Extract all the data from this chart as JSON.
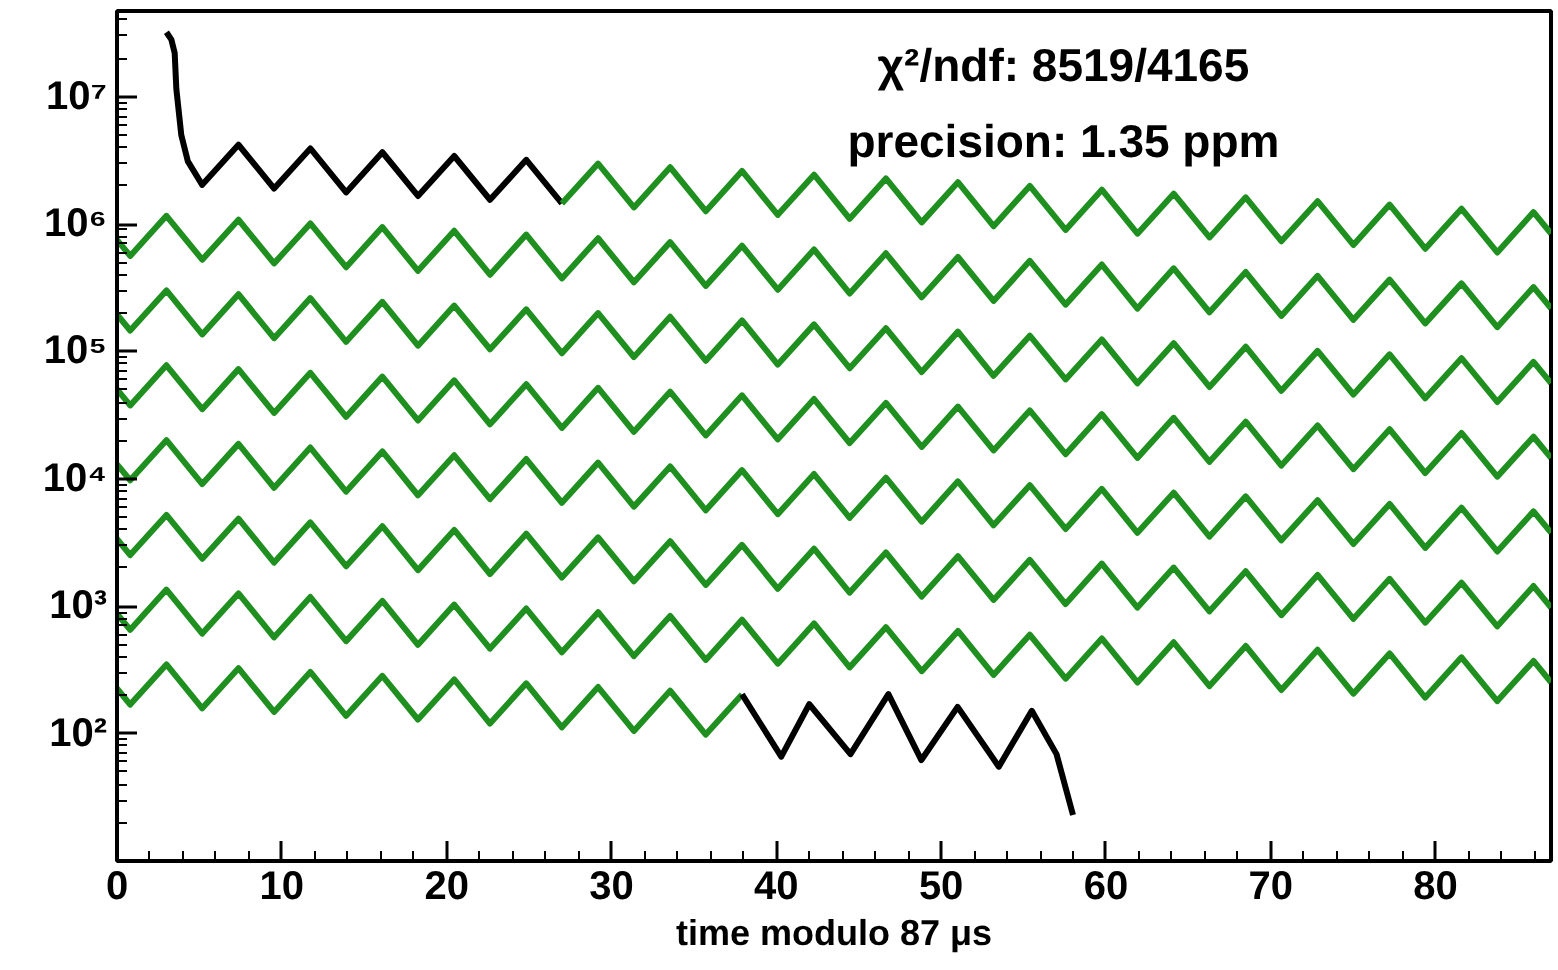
{
  "chart_data": {
    "type": "line",
    "xlabel": "time modulo 87 μs",
    "annotations": [
      "χ²/ndf: 8519/4165",
      "precision: 1.35 ppm"
    ],
    "log": "y",
    "grid": false,
    "line_style": "solid",
    "marker": "none",
    "xlim": [
      0,
      87
    ],
    "ylim": [
      10,
      47000000
    ],
    "xticks": [
      0,
      10,
      20,
      30,
      40,
      50,
      60,
      70,
      80
    ],
    "yticks": [
      {
        "value": 100,
        "label": "10²"
      },
      {
        "value": 1000,
        "label": "10³"
      },
      {
        "value": 10000,
        "label": "10⁴"
      },
      {
        "value": 100000,
        "label": "10⁵"
      },
      {
        "value": 1000000,
        "label": "10⁶"
      },
      {
        "value": 10000000,
        "label": "10⁷"
      }
    ],
    "x": [
      0,
      0.8,
      3.0,
      5.17,
      7.37,
      9.53,
      11.73,
      13.9,
      16.1,
      18.26,
      20.46,
      22.63,
      24.83,
      26.99,
      29.19,
      31.36,
      33.56,
      35.72,
      37.92,
      40.09,
      42.29,
      44.45,
      46.65,
      48.82,
      51.02,
      53.18,
      55.38,
      57.55,
      59.75,
      61.91,
      64.11,
      66.28,
      68.48,
      70.64,
      72.84,
      75.01,
      77.21,
      79.37,
      81.57,
      83.74,
      85.94,
      87
    ],
    "series": [
      {
        "color": "#000000",
        "x": [
          3.0,
          3.3,
          3.5,
          3.6,
          3.9,
          4.3,
          5.17,
          7.37,
          9.53,
          11.73,
          13.9,
          16.1,
          18.26,
          20.46,
          22.63,
          24.83,
          26.99
        ],
        "values": [
          32000000,
          28000000,
          22000000,
          11500000,
          5000000,
          3100000,
          2030000,
          4190000,
          1900000,
          3920000,
          1770000,
          3660000,
          1660000,
          3420000,
          1550000,
          3190000,
          1450000
        ]
      },
      {
        "color": "#1f8f1f",
        "x": [
          26.99,
          29.19,
          31.36,
          33.56,
          35.72,
          37.92,
          40.09,
          42.29,
          44.45,
          46.65,
          48.82,
          51.02,
          53.18,
          55.38,
          57.55,
          59.75,
          61.91,
          64.11,
          66.28,
          68.48,
          70.64,
          72.84,
          75.01,
          77.21,
          79.37,
          81.57,
          83.74,
          85.94,
          87
        ],
        "values": [
          1450000,
          2980000,
          1350000,
          2790000,
          1260000,
          2610000,
          1180000,
          2440000,
          1100000,
          2280000,
          1030000,
          2130000,
          961000,
          1990000,
          899000,
          1860000,
          840000,
          1730000,
          785000,
          1620000,
          733000,
          1510000,
          685000,
          1420000,
          640000,
          1320000,
          598000,
          1240000,
          841000
        ]
      },
      {
        "color": "#1f8f1f",
        "values": [
          752000,
          562000,
          1160000,
          525000,
          1080000,
          491000,
          1010000,
          458000,
          946000,
          429000,
          885000,
          400000,
          826000,
          374000,
          773000,
          349000,
          721000,
          327000,
          675000,
          305000,
          631000,
          285000,
          589000,
          266000,
          551000,
          249000,
          514000,
          233000,
          481000,
          217000,
          449000,
          203000,
          420000,
          190000,
          392000,
          177000,
          366000,
          166000,
          342000,
          155000,
          320000,
          218000
        ]
      },
      {
        "color": "#1f8f1f",
        "values": [
          195000,
          146000,
          301000,
          136000,
          281000,
          127000,
          262000,
          119000,
          245000,
          111000,
          229000,
          104000,
          214000,
          96800,
          200000,
          90400,
          187000,
          84500,
          175000,
          78900,
          163000,
          73800,
          152000,
          68900,
          143000,
          64400,
          133000,
          60300,
          124000,
          56200,
          116000,
          52600,
          109000,
          49100,
          101000,
          45900,
          94800,
          42900,
          88500,
          40100,
          82800,
          56400
        ]
      },
      {
        "color": "#1f8f1f",
        "values": [
          50400,
          37700,
          77800,
          35200,
          72600,
          32900,
          67900,
          30700,
          63400,
          28700,
          59300,
          26800,
          55300,
          25100,
          51800,
          23400,
          48300,
          21900,
          45200,
          20400,
          42300,
          19100,
          39400,
          17800,
          36900,
          16700,
          34400,
          15600,
          32200,
          14600,
          30100,
          13600,
          28100,
          12700,
          26200,
          11900,
          24500,
          11100,
          22900,
          10400,
          21400,
          14600
        ]
      },
      {
        "color": "#1f8f1f",
        "values": [
          13000,
          9750,
          20100,
          9100,
          18800,
          8510,
          17600,
          7940,
          16400,
          7430,
          15300,
          6930,
          14300,
          6490,
          13400,
          6050,
          12500,
          5660,
          11700,
          5280,
          10900,
          4940,
          10200,
          4610,
          9550,
          4320,
          8910,
          4040,
          8340,
          3770,
          7780,
          3520,
          7280,
          3290,
          6790,
          3080,
          6350,
          2870,
          5930,
          2690,
          5550,
          3780
        ]
      },
      {
        "color": "#1f8f1f",
        "values": [
          3370,
          2520,
          5210,
          2360,
          4860,
          2200,
          4550,
          2060,
          4250,
          1920,
          3970,
          1790,
          3710,
          1680,
          3470,
          1570,
          3240,
          1470,
          3030,
          1370,
          2830,
          1280,
          2640,
          1190,
          2470,
          1120,
          2310,
          1040,
          2160,
          975,
          2010,
          912,
          1880,
          851,
          1760,
          796,
          1640,
          743,
          1530,
          695,
          1440,
          977
        ]
      },
      {
        "color": "#1f8f1f",
        "values": [
          873,
          653,
          1350,
          610,
          1260,
          570,
          1180,
          532,
          1100,
          498,
          1030,
          465,
          959,
          435,
          897,
          406,
          838,
          379,
          783,
          354,
          733,
          331,
          684,
          309,
          640,
          289,
          597,
          270,
          558,
          252,
          521,
          236,
          488,
          220,
          455,
          206,
          426,
          192,
          397,
          180,
          372,
          253
        ]
      },
      {
        "color": "#1f8f1f",
        "x": [
          0,
          0.8,
          3.0,
          5.17,
          7.37,
          9.53,
          11.73,
          13.9,
          16.1,
          18.26,
          20.46,
          22.63,
          24.83,
          26.99,
          29.19,
          31.36,
          33.56,
          35.72,
          37.92
        ],
        "values": [
          226,
          169,
          349,
          158,
          326,
          148,
          305,
          138,
          284,
          129,
          266,
          120,
          248,
          112,
          232,
          105,
          217,
          98.2,
          203
        ]
      },
      {
        "color": "#000000",
        "x": [
          37.92,
          40.3,
          42,
          44.5,
          46.8,
          48.8,
          51,
          53.5,
          55.5,
          57,
          58
        ],
        "values": [
          203,
          66,
          170,
          69,
          204,
          62,
          162,
          55,
          151,
          69,
          23
        ]
      }
    ]
  }
}
